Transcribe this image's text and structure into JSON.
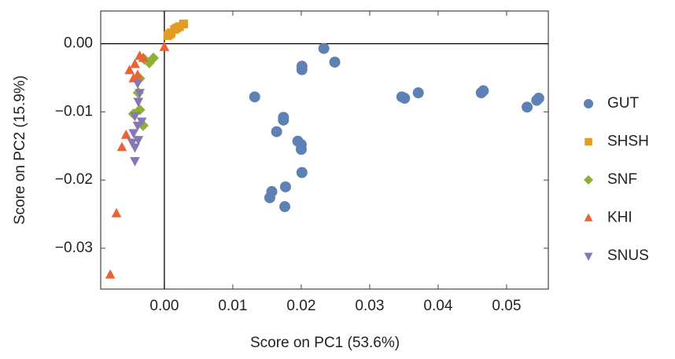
{
  "chart_data": {
    "type": "scatter",
    "x_label": "Score on PC1 (53.6%)",
    "y_label": "Score on PC2 (15.9%)",
    "xlim": [
      -0.0093,
      0.0561
    ],
    "ylim": [
      -0.036,
      0.0048
    ],
    "xticks": [
      {
        "value": 0,
        "label": "0.00"
      },
      {
        "value": 0.01,
        "label": "0.01"
      },
      {
        "value": 0.02,
        "label": "0.02"
      },
      {
        "value": 0.03,
        "label": "0.03"
      },
      {
        "value": 0.04,
        "label": "0.04"
      },
      {
        "value": 0.05,
        "label": "0.05"
      }
    ],
    "yticks": [
      {
        "value": 0,
        "label": "0.00"
      },
      {
        "value": -0.01,
        "label": "−0.01"
      },
      {
        "value": -0.02,
        "label": "−0.02"
      },
      {
        "value": -0.03,
        "label": "−0.03"
      }
    ],
    "zero_lines": true,
    "series": [
      {
        "name": "GUT",
        "color": "#5e81b5",
        "marker": "circle",
        "x": [
          0.0233,
          0.0249,
          0.0201,
          0.0201,
          0.0132,
          0.0174,
          0.0174,
          0.0164,
          0.0195,
          0.02,
          0.02,
          0.0201,
          0.0177,
          0.0157,
          0.0154,
          0.0176,
          0.0347,
          0.0351,
          0.0371,
          0.0463,
          0.0466,
          0.053,
          0.0544,
          0.0547
        ],
        "values": [
          -0.0007,
          -0.0027,
          -0.0033,
          -0.0038,
          -0.0078,
          -0.0108,
          -0.0112,
          -0.0129,
          -0.0143,
          -0.0148,
          -0.0155,
          -0.0189,
          -0.021,
          -0.0217,
          -0.0226,
          -0.0239,
          -0.0078,
          -0.008,
          -0.0072,
          -0.0072,
          -0.0069,
          -0.0093,
          -0.0083,
          -0.008
        ]
      },
      {
        "name": "SHSH",
        "color": "#e19c24",
        "marker": "square",
        "x": [
          0.0005,
          0.001,
          0.0015,
          0.0022,
          0.0028,
          0.0008,
          0.0018
        ],
        "values": [
          0.0012,
          0.0016,
          0.0021,
          0.0025,
          0.0029,
          0.0014,
          0.0023
        ]
      },
      {
        "name": "SNF",
        "color": "#8fb032",
        "marker": "diamond",
        "x": [
          -0.0022,
          -0.0016,
          -0.0029,
          -0.0036,
          -0.0036,
          -0.0045,
          -0.0031,
          -0.0038
        ],
        "values": [
          -0.0028,
          -0.0021,
          -0.0023,
          -0.0051,
          -0.0097,
          -0.0103,
          -0.012,
          -0.0072
        ]
      },
      {
        "name": "KHI",
        "color": "#eb6235",
        "marker": "triangle-up",
        "x": [
          0.0,
          -0.0036,
          -0.0031,
          -0.0051,
          -0.0039,
          -0.0045,
          -0.0056,
          -0.0062,
          -0.007,
          -0.0079,
          -0.0043
        ],
        "values": [
          -0.0005,
          -0.0018,
          -0.0021,
          -0.0039,
          -0.0046,
          -0.0051,
          -0.0134,
          -0.0152,
          -0.0249,
          -0.0339,
          -0.003
        ]
      },
      {
        "name": "SNUS",
        "color": "#8778b3",
        "marker": "triangle-down",
        "x": [
          -0.0039,
          -0.0036,
          -0.0038,
          -0.0043,
          -0.0033,
          -0.0039,
          -0.0045,
          -0.0038,
          -0.0043,
          -0.0043,
          -0.0047
        ],
        "values": [
          -0.0058,
          -0.0072,
          -0.0085,
          -0.0106,
          -0.0114,
          -0.012,
          -0.0131,
          -0.0141,
          -0.0152,
          -0.0172,
          -0.0145
        ]
      }
    ]
  }
}
